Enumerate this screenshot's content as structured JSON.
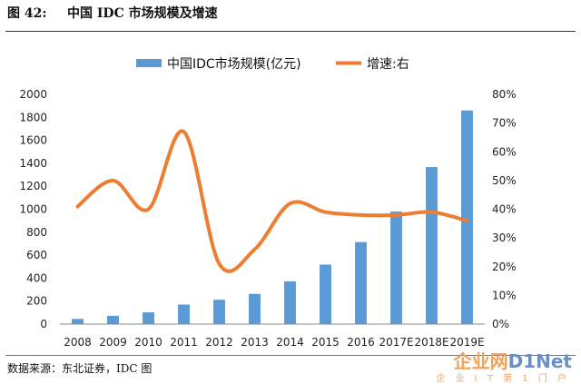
{
  "header": {
    "figure_label": "图  42:",
    "title": "中国 IDC 市场规模及增速"
  },
  "source": "数据来源：东北证券，IDC 图",
  "watermark": {
    "brand_part1": "企业网",
    "brand_part2": "D1Net",
    "tagline": "企 业 I T 第 1 门 户"
  },
  "chart_data": {
    "type": "bar",
    "categories": [
      "2008",
      "2009",
      "2010",
      "2011",
      "2012",
      "2013",
      "2014",
      "2015",
      "2016",
      "2017E",
      "2018E",
      "2019E"
    ],
    "series": [
      {
        "name": "中国IDC市场规模(亿元)",
        "type": "bar",
        "axis": "left",
        "color": "#5b9bd5",
        "values": [
          45,
          72,
          102,
          170,
          212,
          263,
          372,
          518,
          714,
          980,
          1367,
          1860
        ]
      },
      {
        "name": "增速:右",
        "type": "line",
        "axis": "right",
        "color": "#ed7d31",
        "values": [
          41,
          50,
          40,
          67,
          21,
          26,
          42,
          39,
          38,
          38,
          39,
          36
        ]
      }
    ],
    "ylim_left": [
      0,
      2000
    ],
    "ylim_right": [
      0,
      80
    ],
    "yticks_left": [
      "0",
      "200",
      "400",
      "600",
      "800",
      "1000",
      "1200",
      "1400",
      "1600",
      "1800",
      "2000"
    ],
    "yticks_right": [
      "0%",
      "10%",
      "20%",
      "30%",
      "40%",
      "50%",
      "60%",
      "70%",
      "80%"
    ],
    "legend_position": "top",
    "grid": false
  }
}
